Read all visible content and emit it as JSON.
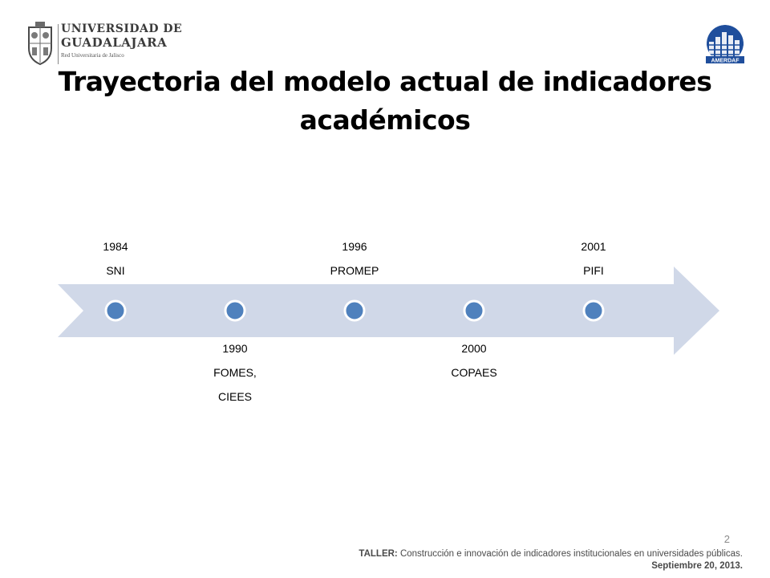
{
  "logos": {
    "university": {
      "line1": "UNIVERSIDAD DE",
      "line2": "GUADALAJARA",
      "line3": "Red Universitaria de Jalisco"
    },
    "amerdaf": {
      "text": "AMERDAF"
    }
  },
  "title": "Trayectoria del modelo actual de indicadores\nacadémicos",
  "timeline": {
    "events": [
      {
        "year": "1984",
        "label_lines": [
          "SNI"
        ],
        "position": "above"
      },
      {
        "year": "1990",
        "label_lines": [
          "FOMES,",
          "CIEES"
        ],
        "position": "below"
      },
      {
        "year": "1996",
        "label_lines": [
          "PROMEP"
        ],
        "position": "above"
      },
      {
        "year": "2000",
        "label_lines": [
          "COPAES"
        ],
        "position": "below"
      },
      {
        "year": "2001",
        "label_lines": [
          "PIFI"
        ],
        "position": "above"
      }
    ],
    "colors": {
      "arrow": "#d0d8e8",
      "dot_fill": "#4f81bd",
      "dot_stroke": "#ffffff"
    }
  },
  "footer": {
    "page_number": "2",
    "taller_label": "TALLER:",
    "taller_text": " Construcción e innovación de indicadores institucionales en universidades públicas.",
    "date": "Septiembre 20, 2013."
  }
}
